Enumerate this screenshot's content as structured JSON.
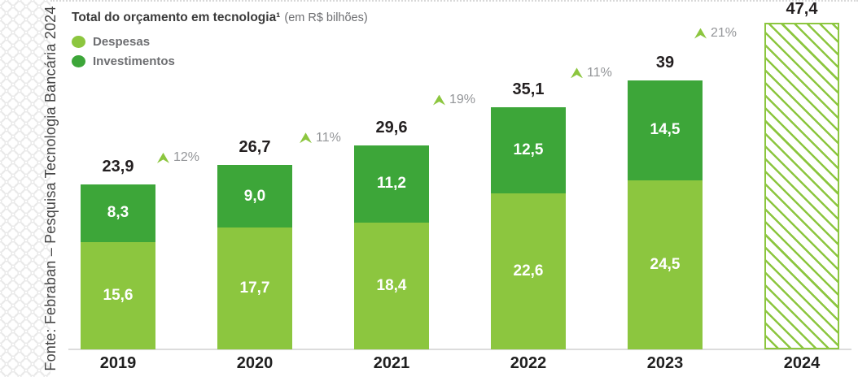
{
  "source_caption": "Fonte: Febraban – Pesquisa Tecnologia Bancária 2024",
  "header": {
    "title_bold": "Total do orçamento em tecnologia¹",
    "title_note": "(em R$ bilhões)"
  },
  "legend": [
    {
      "label": "Despesas",
      "color": "#8CC63F"
    },
    {
      "label": "Investimentos",
      "color": "#3DA639"
    }
  ],
  "colors": {
    "despesas": "#8CC63F",
    "investimentos": "#3DA639",
    "growth_triangle": "#8CC63F",
    "text_dark": "#231F20",
    "text_gray": "#939598",
    "legend_text": "#6D6E71",
    "baseline": "#DCDCDC",
    "pattern": "#EAEAEA"
  },
  "chart_data": {
    "type": "bar",
    "stacked": true,
    "title": "Total do orçamento em tecnologia¹ (em R$ bilhões)",
    "xlabel": "",
    "ylabel": "R$ bilhões",
    "ylim": [
      0,
      50
    ],
    "grid": false,
    "legend_position": "top-left",
    "categories": [
      "2019",
      "2020",
      "2021",
      "2022",
      "2023",
      "2024"
    ],
    "series": [
      {
        "name": "Despesas",
        "color": "#8CC63F",
        "values": [
          15.6,
          17.7,
          18.4,
          22.6,
          24.5,
          null
        ],
        "labels": [
          "15,6",
          "17,7",
          "18,4",
          "22,6",
          "24,5",
          ""
        ]
      },
      {
        "name": "Investimentos",
        "color": "#3DA639",
        "values": [
          8.3,
          9.0,
          11.2,
          12.5,
          14.5,
          null
        ],
        "labels": [
          "8,3",
          "9,0",
          "11,2",
          "12,5",
          "14,5",
          ""
        ]
      }
    ],
    "totals": {
      "values": [
        23.9,
        26.7,
        29.6,
        35.1,
        39,
        47.4
      ],
      "labels": [
        "23,9",
        "26,7",
        "29,6",
        "35,1",
        "39",
        "47,4"
      ]
    },
    "growth_markers": [
      {
        "after": "2019",
        "label": "12%"
      },
      {
        "after": "2020",
        "label": "11%"
      },
      {
        "after": "2021",
        "label": "19%"
      },
      {
        "after": "2022",
        "label": "11%"
      },
      {
        "after": "2023",
        "label": "21%"
      }
    ],
    "projected_last": true
  }
}
